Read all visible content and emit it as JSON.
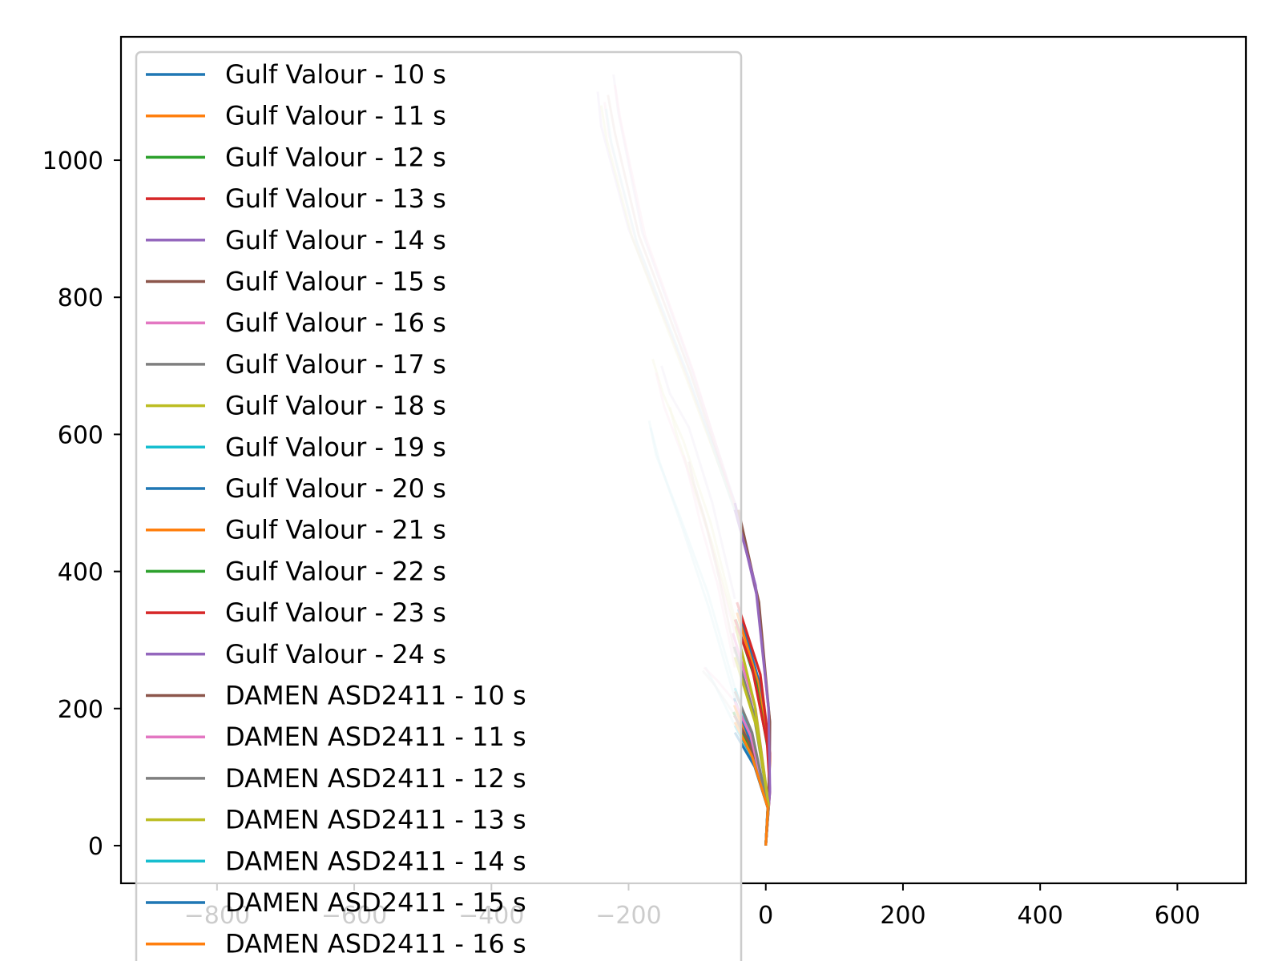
{
  "chart_data": {
    "type": "line",
    "title": "",
    "xlabel": "",
    "ylabel": "",
    "xlim": [
      -940,
      700
    ],
    "ylim": [
      -55,
      1180
    ],
    "xticks": [
      -800,
      -600,
      -400,
      -200,
      0,
      200,
      400,
      600
    ],
    "xtick_labels": [
      "−800",
      "−600",
      "−400",
      "−200",
      "0",
      "200",
      "400",
      "600"
    ],
    "yticks": [
      0,
      200,
      400,
      600,
      800,
      1000
    ],
    "ytick_labels": [
      "0",
      "200",
      "400",
      "600",
      "800",
      "1000"
    ],
    "grid": false,
    "legend_position": "upper-left",
    "series": [
      {
        "name": "Gulf Valour - 10 s",
        "color": "#1f77b4",
        "x": [
          0,
          4,
          6,
          -10,
          -40
        ],
        "y": [
          0,
          60,
          130,
          240,
          345
        ]
      },
      {
        "name": "Gulf Valour - 11 s",
        "color": "#ff7f0e",
        "x": [
          0,
          4,
          6,
          -12,
          -42
        ],
        "y": [
          0,
          60,
          130,
          240,
          340
        ]
      },
      {
        "name": "Gulf Valour - 12 s",
        "color": "#2ca02c",
        "x": [
          0,
          4,
          5,
          -14,
          -44
        ],
        "y": [
          0,
          60,
          130,
          238,
          330
        ]
      },
      {
        "name": "Gulf Valour - 13 s",
        "color": "#d62728",
        "x": [
          0,
          4,
          6,
          -8,
          -42
        ],
        "y": [
          0,
          60,
          135,
          250,
          355
        ]
      },
      {
        "name": "Gulf Valour - 14 s",
        "color": "#9467bd",
        "x": [
          0,
          5,
          6,
          -12,
          -45
        ],
        "y": [
          0,
          70,
          180,
          360,
          500
        ]
      },
      {
        "name": "Gulf Valour - 15 s",
        "color": "#8c564b",
        "x": [
          0,
          5,
          6,
          -10,
          -40
        ],
        "y": [
          0,
          70,
          180,
          355,
          490
        ]
      },
      {
        "name": "Gulf Valour - 16 s",
        "color": "#e377c2",
        "x": [
          0,
          4,
          -15,
          -48
        ],
        "y": [
          0,
          60,
          200,
          310
        ]
      },
      {
        "name": "Gulf Valour - 17 s",
        "color": "#7f7f7f",
        "x": [
          0,
          4,
          -18,
          -46
        ],
        "y": [
          0,
          60,
          195,
          290
        ]
      },
      {
        "name": "Gulf Valour - 18 s",
        "color": "#bcbd22",
        "x": [
          0,
          4,
          -16,
          -44
        ],
        "y": [
          0,
          60,
          205,
          320
        ]
      },
      {
        "name": "Gulf Valour - 19 s",
        "color": "#17becf",
        "x": [
          0,
          3,
          -18,
          -45
        ],
        "y": [
          0,
          60,
          150,
          230
        ]
      },
      {
        "name": "Gulf Valour - 20 s",
        "color": "#1f77b4",
        "x": [
          0,
          3,
          -20,
          -46
        ],
        "y": [
          0,
          55,
          145,
          215
        ]
      },
      {
        "name": "Gulf Valour - 21 s",
        "color": "#ff7f0e",
        "x": [
          0,
          3,
          -22,
          -46
        ],
        "y": [
          0,
          55,
          140,
          205
        ]
      },
      {
        "name": "Gulf Valour - 22 s",
        "color": "#2ca02c",
        "x": [
          0,
          3,
          -22,
          -47
        ],
        "y": [
          0,
          55,
          135,
          195
        ]
      },
      {
        "name": "Gulf Valour - 23 s",
        "color": "#d62728",
        "x": [
          0,
          6,
          2,
          -20,
          -45
        ],
        "y": [
          0,
          80,
          150,
          260,
          330
        ]
      },
      {
        "name": "Gulf Valour - 24 s",
        "color": "#9467bd",
        "x": [
          0,
          6,
          4,
          -15,
          -45
        ],
        "y": [
          0,
          80,
          200,
          380,
          490
        ]
      },
      {
        "name": "DAMEN ASD2411 - 10 s",
        "color": "#8c564b",
        "x": [
          0,
          3,
          -24,
          -46
        ],
        "y": [
          0,
          55,
          150,
          190
        ]
      },
      {
        "name": "DAMEN ASD2411 - 11 s",
        "color": "#e377c2",
        "x": [
          0,
          3,
          -22,
          -45
        ],
        "y": [
          0,
          55,
          160,
          210
        ]
      },
      {
        "name": "DAMEN ASD2411 - 12 s",
        "color": "#7f7f7f",
        "x": [
          0,
          3,
          -20,
          -45
        ],
        "y": [
          0,
          55,
          165,
          225
        ]
      },
      {
        "name": "DAMEN ASD2411 - 13 s",
        "color": "#bcbd22",
        "x": [
          0,
          4,
          -14,
          -45
        ],
        "y": [
          0,
          60,
          175,
          275
        ]
      },
      {
        "name": "DAMEN ASD2411 - 14 s",
        "color": "#17becf",
        "x": [
          0,
          3,
          -18,
          -45
        ],
        "y": [
          0,
          55,
          125,
          175
        ]
      },
      {
        "name": "DAMEN ASD2411 - 15 s",
        "color": "#1f77b4",
        "x": [
          0,
          3,
          -16,
          -45
        ],
        "y": [
          0,
          55,
          115,
          165
        ]
      },
      {
        "name": "DAMEN ASD2411 - 16 s",
        "color": "#ff7f0e",
        "x": [
          0,
          3,
          -20,
          -45
        ],
        "y": [
          0,
          55,
          130,
          180
        ]
      }
    ],
    "faded_segments": [
      {
        "color": "#c9a7e6",
        "x": [
          -45,
          -120,
          -200,
          -240,
          -245
        ],
        "y": [
          500,
          700,
          900,
          1050,
          1100
        ]
      },
      {
        "color": "#c49c94",
        "x": [
          -45,
          -110,
          -185,
          -220,
          -230
        ],
        "y": [
          495,
          690,
          890,
          1040,
          1095
        ]
      },
      {
        "color": "#f7b6d2",
        "x": [
          -45,
          -115,
          -190,
          -228,
          -235
        ],
        "y": [
          490,
          685,
          885,
          1035,
          1085
        ]
      },
      {
        "color": "#dbdb8d",
        "x": [
          -45,
          -118,
          -195,
          -232,
          -240
        ],
        "y": [
          492,
          688,
          888,
          1030,
          1080
        ]
      },
      {
        "color": "#c5b0d5",
        "x": [
          -45,
          -108,
          -180,
          -215,
          -222
        ],
        "y": [
          500,
          695,
          895,
          1070,
          1125
        ]
      },
      {
        "color": "#9edae5",
        "x": [
          -45,
          -112,
          -188,
          -225,
          -233
        ],
        "y": [
          488,
          683,
          880,
          1025,
          1075
        ]
      },
      {
        "color": "#f7b6d2",
        "x": [
          -45,
          -105,
          -176,
          -212,
          -220
        ],
        "y": [
          495,
          690,
          890,
          1060,
          1110
        ]
      },
      {
        "color": "#dbdb8d",
        "x": [
          -45,
          -80,
          -120,
          -150,
          -165
        ],
        "y": [
          330,
          470,
          590,
          660,
          710
        ]
      },
      {
        "color": "#9edae5",
        "x": [
          -45,
          -85,
          -125,
          -160,
          -170
        ],
        "y": [
          230,
          370,
          480,
          570,
          620
        ]
      },
      {
        "color": "#f7b6d2",
        "x": [
          -45,
          -82,
          -118,
          -148,
          -160
        ],
        "y": [
          310,
          450,
          560,
          640,
          690
        ]
      },
      {
        "color": "#c5b0d5",
        "x": [
          -45,
          -78,
          -112,
          -140,
          -152
        ],
        "y": [
          360,
          500,
          610,
          660,
          700
        ]
      },
      {
        "color": "#dbdb8d",
        "x": [
          -45,
          -78,
          -110,
          -130,
          -140
        ],
        "y": [
          320,
          440,
          540,
          600,
          640
        ]
      },
      {
        "color": "#9edae5",
        "x": [
          -45,
          -84,
          -122,
          -155,
          -168
        ],
        "y": [
          215,
          350,
          465,
          560,
          610
        ]
      },
      {
        "color": "#f7b6d2",
        "x": [
          -45,
          -70,
          -95,
          -112,
          -120
        ],
        "y": [
          260,
          380,
          470,
          540,
          570
        ]
      },
      {
        "color": "#c49c94",
        "x": [
          -45,
          -68,
          -90,
          -105,
          -112
        ],
        "y": [
          280,
          390,
          480,
          530,
          560
        ]
      },
      {
        "color": "#9edae5",
        "x": [
          -45,
          -72,
          -88
        ],
        "y": [
          175,
          230,
          260
        ]
      },
      {
        "color": "#c7c7c7",
        "x": [
          -45,
          -75,
          -92
        ],
        "y": [
          190,
          235,
          255
        ]
      },
      {
        "color": "#f7b6d2",
        "x": [
          -45,
          -70,
          -90
        ],
        "y": [
          210,
          240,
          260
        ]
      }
    ]
  }
}
